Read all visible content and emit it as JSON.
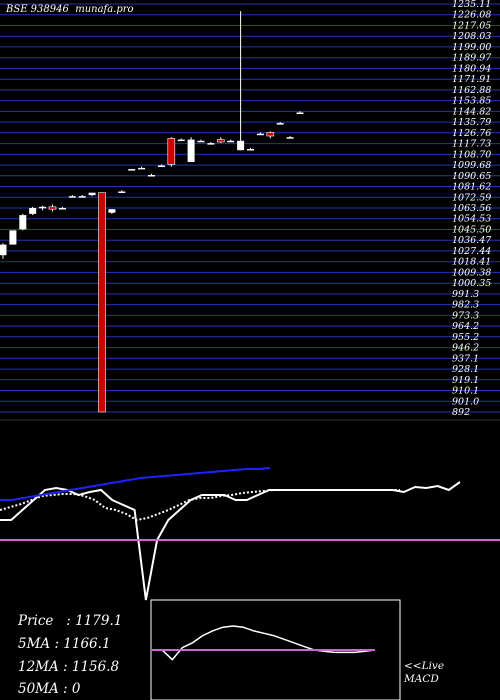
{
  "chart_data": [
    {
      "type": "candlestick",
      "title": "BSE 938946  munafa.pro",
      "colors": {
        "background": "#000000",
        "gridline": "#1f36b5",
        "up": "#ffffff",
        "down": "#cc0000",
        "text": "#ffffff"
      },
      "y_ticks": [
        "1235.11",
        "1226.08",
        "1217.05",
        "1208.03",
        "1199.00",
        "1189.97",
        "1180.94",
        "1171.91",
        "1162.88",
        "1153.85",
        "1144.82",
        "1135.79",
        "1126.76",
        "1117.73",
        "1108.70",
        "1099.68",
        "1090.65",
        "1081.62",
        "1072.59",
        "1063.56",
        "1054.53",
        "1045.50",
        "1036.47",
        "1027.44",
        "1018.41",
        "1009.38",
        "1000.35",
        "991.3",
        "982.3",
        "973.3",
        "964.2",
        "955.2",
        "946.2",
        "937.1",
        "928.1",
        "919.1",
        "910.1",
        "901.0",
        "892"
      ],
      "candles": [
        {
          "open": 1025,
          "high": 1035,
          "low": 1022,
          "close": 1034
        },
        {
          "open": 1034,
          "high": 1046,
          "low": 1034,
          "close": 1046
        },
        {
          "open": 1047,
          "high": 1060,
          "low": 1046,
          "close": 1059
        },
        {
          "open": 1060,
          "high": 1066,
          "low": 1059,
          "close": 1065
        },
        {
          "open": 1065,
          "high": 1067,
          "low": 1063,
          "close": 1066
        },
        {
          "open": 1066,
          "high": 1068,
          "low": 1062,
          "close": 1064
        },
        {
          "open": 1065,
          "high": 1066,
          "low": 1065,
          "close": 1065
        },
        {
          "open": 1075,
          "high": 1076,
          "low": 1074,
          "close": 1075
        },
        {
          "open": 1075,
          "high": 1076,
          "low": 1074,
          "close": 1075
        },
        {
          "open": 1076,
          "high": 1077,
          "low": 1075,
          "close": 1078
        },
        {
          "open": 1078,
          "high": 1078,
          "low": 892,
          "close": 892
        },
        {
          "open": 1061,
          "high": 1064,
          "low": 1060,
          "close": 1064
        },
        {
          "open": 1079,
          "high": 1080,
          "low": 1078,
          "close": 1079
        },
        {
          "open": 1097,
          "high": 1098,
          "low": 1097,
          "close": 1098
        },
        {
          "open": 1099,
          "high": 1100,
          "low": 1098,
          "close": 1099
        },
        {
          "open": 1093,
          "high": 1094,
          "low": 1092,
          "close": 1093
        },
        {
          "open": 1101,
          "high": 1102,
          "low": 1100,
          "close": 1101
        },
        {
          "open": 1124,
          "high": 1125,
          "low": 1100,
          "close": 1102
        },
        {
          "open": 1123,
          "high": 1124,
          "low": 1122,
          "close": 1123
        },
        {
          "open": 1104,
          "high": 1125,
          "low": 1104,
          "close": 1123
        },
        {
          "open": 1122,
          "high": 1123,
          "low": 1121,
          "close": 1122
        },
        {
          "open": 1120,
          "high": 1121,
          "low": 1119,
          "close": 1120
        },
        {
          "open": 1123,
          "high": 1125,
          "low": 1120,
          "close": 1121
        },
        {
          "open": 1122,
          "high": 1123,
          "low": 1121,
          "close": 1122
        },
        {
          "open": 1114,
          "high": 1232,
          "low": 1114,
          "close": 1122
        },
        {
          "open": 1115,
          "high": 1116,
          "low": 1114,
          "close": 1115
        },
        {
          "open": 1128,
          "high": 1129,
          "low": 1127,
          "close": 1128
        },
        {
          "open": 1129,
          "high": 1130,
          "low": 1124,
          "close": 1126
        },
        {
          "open": 1137,
          "high": 1138,
          "low": 1136,
          "close": 1137
        },
        {
          "open": 1125,
          "high": 1126,
          "low": 1124,
          "close": 1125
        },
        {
          "open": 1146,
          "high": 1147,
          "low": 1145,
          "close": 1146
        }
      ],
      "y_domain": [
        892,
        1238
      ]
    },
    {
      "type": "line",
      "name": "indicator",
      "series": [
        {
          "color": "#ffffff",
          "values": [
            20,
            20,
            30,
            40,
            50,
            52,
            50,
            45,
            48,
            50,
            40,
            35,
            30,
            -60,
            0,
            20,
            30,
            40,
            45,
            45,
            45,
            40,
            40,
            45,
            50,
            50,
            50,
            50,
            50,
            50,
            50,
            50,
            50,
            50,
            50,
            50,
            48,
            53,
            52,
            54,
            50,
            58
          ]
        },
        {
          "color": "#ffffff",
          "dash": true,
          "values": [
            30,
            33,
            36,
            40,
            44,
            45,
            46,
            46,
            44,
            40,
            32,
            30,
            26,
            20,
            22,
            26,
            30,
            35,
            40,
            42,
            42,
            44,
            45,
            47,
            48,
            49,
            50,
            50,
            50,
            50,
            50,
            50,
            50,
            50,
            50,
            50,
            50,
            50,
            50
          ]
        },
        {
          "color": "#1d22ff",
          "values": [
            40,
            40,
            42,
            44,
            46,
            48,
            50,
            52,
            54,
            56,
            58,
            60,
            62,
            63,
            64,
            65,
            66,
            67,
            68,
            69,
            70,
            71,
            71,
            72
          ]
        },
        {
          "color": "#cc66cc",
          "values": [
            0,
            0
          ]
        }
      ]
    },
    {
      "type": "line",
      "name": "macd",
      "series": [
        {
          "color": "#ffffff",
          "values": [
            0,
            0,
            -8,
            2,
            6,
            12,
            16,
            19,
            20,
            19,
            16,
            14,
            12,
            9,
            6,
            3,
            0,
            -1,
            -2,
            -2,
            -2,
            -1,
            0
          ]
        },
        {
          "color": "#cc66cc",
          "values": [
            0,
            0
          ]
        }
      ]
    }
  ],
  "stats": {
    "price": "Price   : 1179.1",
    "ma5": "5MA : 1166.1",
    "ma12": "12MA : 1156.8",
    "ma50": "50MA : 0"
  },
  "macd_label_line1": "<<Live",
  "macd_label_line2": "MACD"
}
